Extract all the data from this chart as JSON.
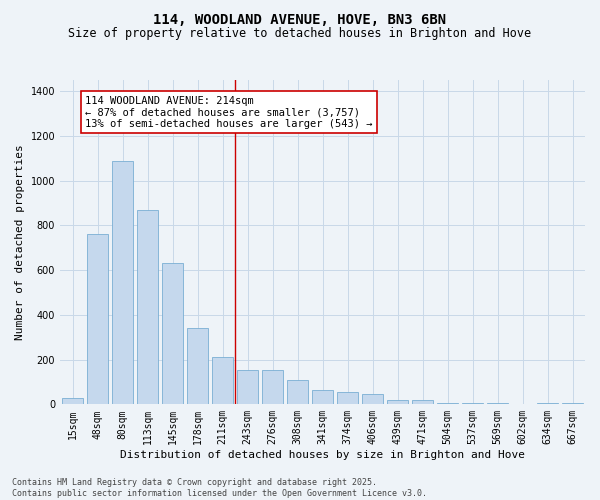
{
  "title": "114, WOODLAND AVENUE, HOVE, BN3 6BN",
  "subtitle": "Size of property relative to detached houses in Brighton and Hove",
  "xlabel": "Distribution of detached houses by size in Brighton and Hove",
  "ylabel": "Number of detached properties",
  "categories": [
    "15sqm",
    "48sqm",
    "80sqm",
    "113sqm",
    "145sqm",
    "178sqm",
    "211sqm",
    "243sqm",
    "276sqm",
    "308sqm",
    "341sqm",
    "374sqm",
    "406sqm",
    "439sqm",
    "471sqm",
    "504sqm",
    "537sqm",
    "569sqm",
    "602sqm",
    "634sqm",
    "667sqm"
  ],
  "values": [
    30,
    760,
    1090,
    870,
    630,
    340,
    210,
    155,
    155,
    110,
    65,
    55,
    45,
    20,
    20,
    5,
    5,
    5,
    0,
    5,
    5
  ],
  "bar_color": "#c5d8ed",
  "bar_edge_color": "#7aafd4",
  "grid_color": "#c8d8e8",
  "background_color": "#eef3f8",
  "vline_x_index": 6.5,
  "vline_color": "#cc0000",
  "annotation_text": "114 WOODLAND AVENUE: 214sqm\n← 87% of detached houses are smaller (3,757)\n13% of semi-detached houses are larger (543) →",
  "annotation_box_color": "#ffffff",
  "annotation_box_edge": "#cc0000",
  "ylim": [
    0,
    1450
  ],
  "yticks": [
    0,
    200,
    400,
    600,
    800,
    1000,
    1200,
    1400
  ],
  "footer": "Contains HM Land Registry data © Crown copyright and database right 2025.\nContains public sector information licensed under the Open Government Licence v3.0.",
  "title_fontsize": 10,
  "subtitle_fontsize": 8.5,
  "xlabel_fontsize": 8,
  "ylabel_fontsize": 8,
  "tick_fontsize": 7,
  "annotation_fontsize": 7.5,
  "footer_fontsize": 6
}
